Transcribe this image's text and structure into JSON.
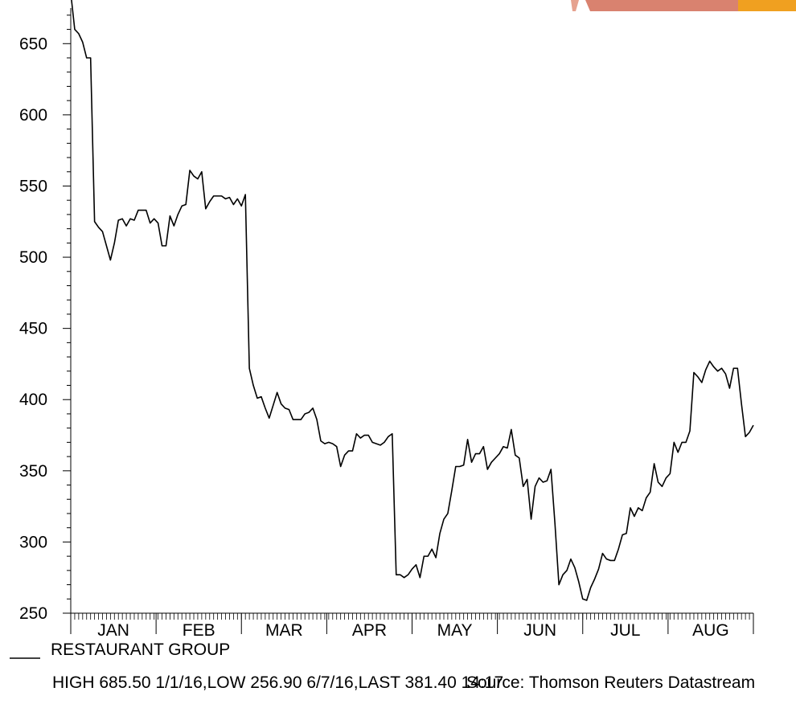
{
  "chart_data": {
    "type": "line",
    "title": "",
    "xlabel": "",
    "ylabel": "",
    "ylim": [
      250,
      675
    ],
    "yticks": [
      250,
      300,
      350,
      400,
      450,
      500,
      550,
      600,
      650
    ],
    "month_labels": [
      "JAN",
      "FEB",
      "MAR",
      "APR",
      "MAY",
      "JUN",
      "JUL",
      "AUG"
    ],
    "grid": false,
    "legend_position": "bottom-left",
    "series": [
      {
        "name": "RESTAURANT GROUP",
        "color": "#000000",
        "values": [
          685.5,
          660,
          657,
          651,
          640,
          640,
          525,
          521,
          518,
          508,
          498,
          510,
          526,
          527,
          522,
          527,
          526,
          533,
          533,
          533,
          524,
          527,
          524,
          508,
          508,
          529,
          522,
          530,
          536,
          537,
          561,
          557,
          555,
          560,
          534,
          539,
          543,
          543,
          543,
          541,
          542,
          537,
          541,
          536,
          544,
          422,
          410,
          401,
          402,
          394,
          387,
          396,
          405,
          397,
          394,
          393,
          386,
          386,
          386,
          390,
          391,
          394,
          386,
          371,
          369,
          370,
          369,
          367,
          353,
          361,
          364,
          364,
          376,
          373,
          375,
          375,
          370,
          369,
          368,
          370,
          374,
          376,
          277,
          277,
          275,
          277,
          281,
          284,
          275,
          290,
          290,
          295,
          289,
          306,
          316,
          320,
          336,
          353,
          353,
          354,
          372,
          356,
          362,
          362,
          367,
          351,
          356,
          359,
          362,
          367,
          366,
          379,
          361,
          359,
          339,
          344,
          316,
          339,
          345,
          342,
          343,
          351,
          313,
          270,
          277,
          280,
          288,
          282,
          272,
          260,
          259,
          268,
          274,
          281,
          292,
          288,
          287,
          287,
          295,
          305,
          306,
          324,
          318,
          324,
          322,
          331,
          335,
          355,
          342,
          339,
          345,
          348,
          370,
          363,
          370,
          370,
          378,
          419,
          416,
          412,
          421,
          427,
          423,
          420,
          422,
          418,
          408,
          422,
          422,
          397,
          374,
          377,
          382
        ]
      }
    ],
    "footer_stats": "HIGH 685.50 1/1/16,LOW 256.90 6/7/16,LAST 381.40 14:17",
    "source": "Source: Thomson Reuters Datastream",
    "decoration_colors": [
      "#d9826f",
      "#e6a28f",
      "#f0a020"
    ]
  }
}
